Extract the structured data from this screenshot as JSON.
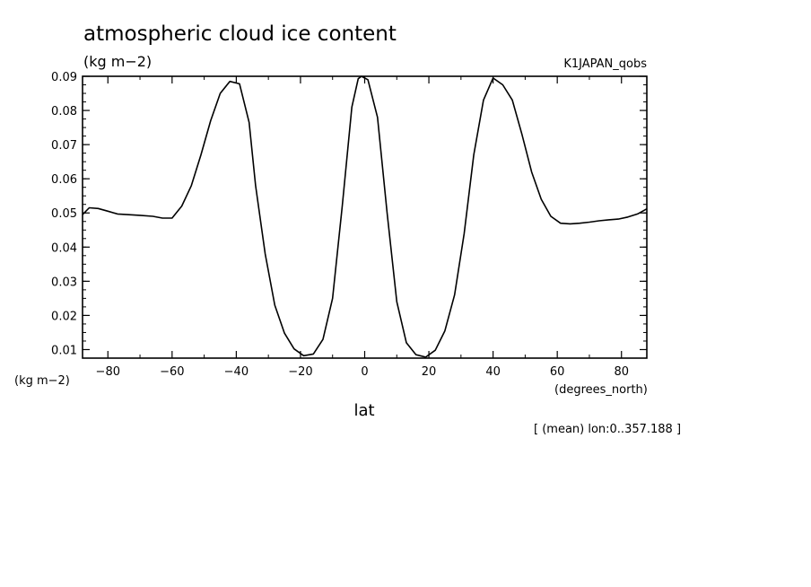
{
  "chart_data": {
    "type": "line",
    "title": "atmospheric cloud ice content",
    "subtitle": "(kg m−2)",
    "dataset_label": "K1JAPAN_qobs",
    "ylabel": "(kg m−2)",
    "xlabel": "lat",
    "x_units": "(degrees_north)",
    "footnote": "[ (mean) lon:0..357.188 ]",
    "xlim": [
      -87.9,
      87.9
    ],
    "ylim": [
      0.0075,
      0.09
    ],
    "xticks": [
      -80,
      -60,
      -40,
      -20,
      0,
      20,
      40,
      60,
      80
    ],
    "xtick_labels": [
      "−80",
      "−60",
      "−40",
      "−20",
      "0",
      "20",
      "40",
      "60",
      "80"
    ],
    "yticks": [
      0.01,
      0.02,
      0.03,
      0.04,
      0.05,
      0.06,
      0.07,
      0.08,
      0.09
    ],
    "ytick_labels": [
      "0.01",
      "0.02",
      "0.03",
      "0.04",
      "0.05",
      "0.06",
      "0.07",
      "0.08",
      "0.09"
    ],
    "series": [
      {
        "x": [
          -87.9,
          -85.8,
          -83,
          -80,
          -77,
          -74,
          -70,
          -66,
          -63,
          -60,
          -57,
          -54,
          -51,
          -48,
          -45,
          -42,
          -39,
          -36,
          -34,
          -31,
          -28,
          -25,
          -22,
          -19,
          -16,
          -13,
          -10,
          -7,
          -4,
          -2,
          -1,
          1,
          4,
          7,
          10,
          13,
          16,
          19,
          22,
          25,
          28,
          31,
          34,
          37,
          40,
          43,
          46,
          49,
          52,
          55,
          58,
          61,
          64,
          67,
          70,
          73,
          76,
          79,
          82,
          85,
          87.9
        ],
        "y": [
          0.0495,
          0.0515,
          0.0513,
          0.0505,
          0.0497,
          0.0495,
          0.0493,
          0.049,
          0.0485,
          0.0485,
          0.052,
          0.058,
          0.067,
          0.077,
          0.085,
          0.0885,
          0.0878,
          0.0765,
          0.058,
          0.038,
          0.023,
          0.0148,
          0.0102,
          0.0082,
          0.0087,
          0.013,
          0.025,
          0.052,
          0.081,
          0.0893,
          0.09,
          0.089,
          0.078,
          0.05,
          0.024,
          0.012,
          0.0085,
          0.0078,
          0.0098,
          0.0155,
          0.026,
          0.044,
          0.067,
          0.083,
          0.0895,
          0.0875,
          0.083,
          0.073,
          0.062,
          0.054,
          0.049,
          0.047,
          0.0468,
          0.047,
          0.0473,
          0.0477,
          0.048,
          0.0482,
          0.0488,
          0.0497,
          0.0512
        ]
      }
    ]
  }
}
